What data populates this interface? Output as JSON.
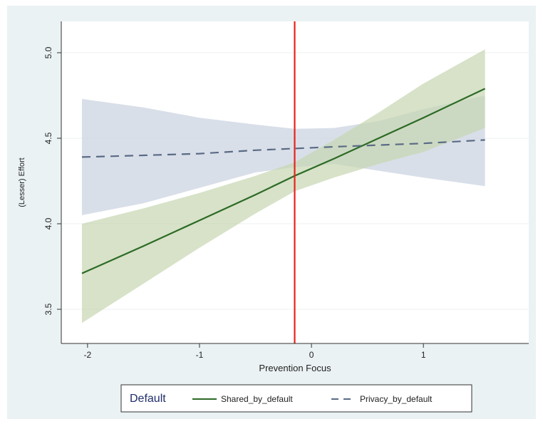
{
  "chart_data": {
    "type": "line",
    "xlabel": "Prevention Focus",
    "ylabel": "(Lesser) Effort",
    "xlim": [
      -2.05,
      1.75
    ],
    "ylim": [
      3.35,
      5.1
    ],
    "x_ticks": [
      {
        "value": -2,
        "label": "-2"
      },
      {
        "value": -1,
        "label": "-1"
      },
      {
        "value": 0,
        "label": "0"
      },
      {
        "value": 1,
        "label": "1"
      }
    ],
    "y_ticks": [
      {
        "value": 3.5,
        "label": "3.5"
      },
      {
        "value": 4.0,
        "label": "4.0"
      },
      {
        "value": 4.5,
        "label": "4.5"
      },
      {
        "value": 5.0,
        "label": "5.0"
      }
    ],
    "grid": "horizontal",
    "vline": {
      "x": -0.15,
      "color": "#e8221b"
    },
    "series": [
      {
        "name": "Privacy_by_default",
        "style": "dashed",
        "color": "#5a6b85",
        "band_color": "#c9d1e0",
        "x": [
          -2.05,
          -1.5,
          -1.0,
          -0.5,
          -0.15,
          0.2,
          0.6,
          1.0,
          1.55
        ],
        "y": [
          4.39,
          4.4,
          4.41,
          4.43,
          4.44,
          4.45,
          4.46,
          4.47,
          4.49
        ],
        "lower": [
          4.05,
          4.12,
          4.21,
          4.3,
          4.33,
          4.35,
          4.31,
          4.27,
          4.22
        ],
        "upper": [
          4.73,
          4.68,
          4.62,
          4.58,
          4.555,
          4.56,
          4.6,
          4.67,
          4.75
        ]
      },
      {
        "name": "Shared_by_default",
        "style": "solid",
        "color": "#2c6a25",
        "band_color": "#c6d6b0",
        "x": [
          -2.05,
          -1.5,
          -1.0,
          -0.5,
          -0.15,
          0.2,
          0.6,
          1.0,
          1.55
        ],
        "y": [
          3.71,
          3.87,
          4.02,
          4.17,
          4.28,
          4.38,
          4.5,
          4.62,
          4.79
        ],
        "lower": [
          3.42,
          3.65,
          3.86,
          4.06,
          4.19,
          4.27,
          4.35,
          4.42,
          4.56
        ],
        "upper": [
          4.0,
          4.09,
          4.18,
          4.28,
          4.36,
          4.49,
          4.65,
          4.82,
          5.02
        ]
      }
    ],
    "legend": {
      "position": "bottom",
      "title": "Default",
      "entries": [
        "Shared_by_default",
        "Privacy_by_default"
      ]
    }
  }
}
